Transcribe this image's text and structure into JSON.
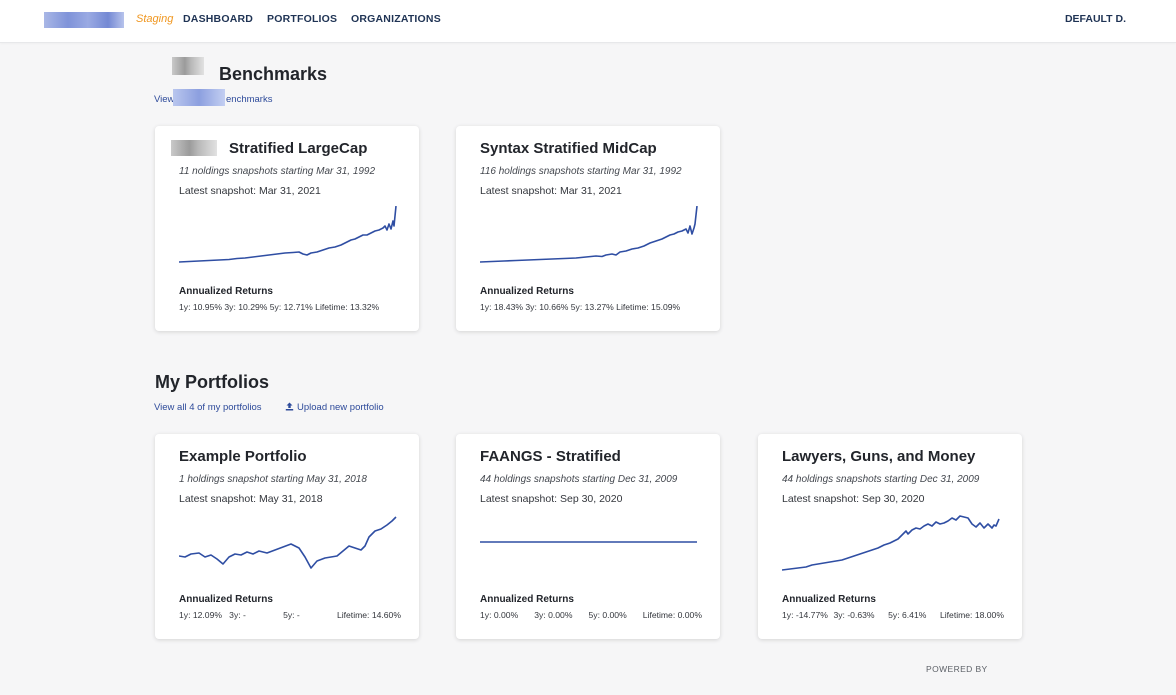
{
  "header": {
    "env_label": "Staging",
    "nav": [
      "DASHBOARD",
      "PORTFOLIOS",
      "ORGANIZATIONS"
    ],
    "user": "DEFAULT D."
  },
  "benchmarks": {
    "title_visible": "Benchmarks",
    "link_prefix": "View",
    "link_suffix": "enchmarks",
    "cards": [
      {
        "title_visible": "Stratified LargeCap",
        "subtitle_start": "11",
        "subtitle_rest": " noldings snapshots starting Mar 31, 1992",
        "latest": "Latest snapshot: Mar 31, 2021",
        "returns_label": "Annualized Returns",
        "returns": [
          "1y: 10.95%",
          "3y: 10.29%",
          "5y: 12.71%",
          "Lifetime: 13.32%"
        ]
      },
      {
        "title": "Syntax Stratified MidCap",
        "subtitle": "116 holdings snapshots starting Mar 31, 1992",
        "latest": "Latest snapshot: Mar 31, 2021",
        "returns_label": "Annualized Returns",
        "returns": [
          "1y: 18.43%",
          "3y: 10.66%",
          "5y: 13.27%",
          "Lifetime: 15.09%"
        ]
      }
    ]
  },
  "portfolios": {
    "title": "My Portfolios",
    "view_all_link": "View all 4 of my portfolios",
    "upload_link": "Upload new portfolio",
    "cards": [
      {
        "title": "Example Portfolio",
        "subtitle": "1 holdings snapshot starting May 31, 2018",
        "latest": "Latest snapshot: May 31, 2018",
        "returns_label": "Annualized Returns",
        "returns": [
          "1y: 12.09%",
          "3y: -",
          "5y: -",
          "Lifetime: 14.60%"
        ]
      },
      {
        "title": "FAANGS - Stratified",
        "subtitle": "44 holdings snapshots starting Dec 31, 2009",
        "latest": "Latest snapshot: Sep 30, 2020",
        "returns_label": "Annualized Returns",
        "returns": [
          "1y: 0.00%",
          "3y: 0.00%",
          "5y: 0.00%",
          "Lifetime: 0.00%"
        ]
      },
      {
        "title": "Lawyers, Guns, and Money",
        "subtitle": "44 holdings snapshots starting Dec 31, 2009",
        "latest": "Latest snapshot: Sep 30, 2020",
        "returns_label": "Annualized Returns",
        "returns": [
          "1y: -14.77%",
          "3y: -0.63%",
          "5y: 6.41%",
          "Lifetime: 18.00%"
        ]
      }
    ]
  },
  "footer": {
    "powered_by": "POWERED BY"
  },
  "colors": {
    "line": "#2f4ea3",
    "accent_env": "#f0961e",
    "nav_text": "#1f3354"
  },
  "icons": {
    "upload": "upload-icon",
    "logo": "app-logo"
  }
}
